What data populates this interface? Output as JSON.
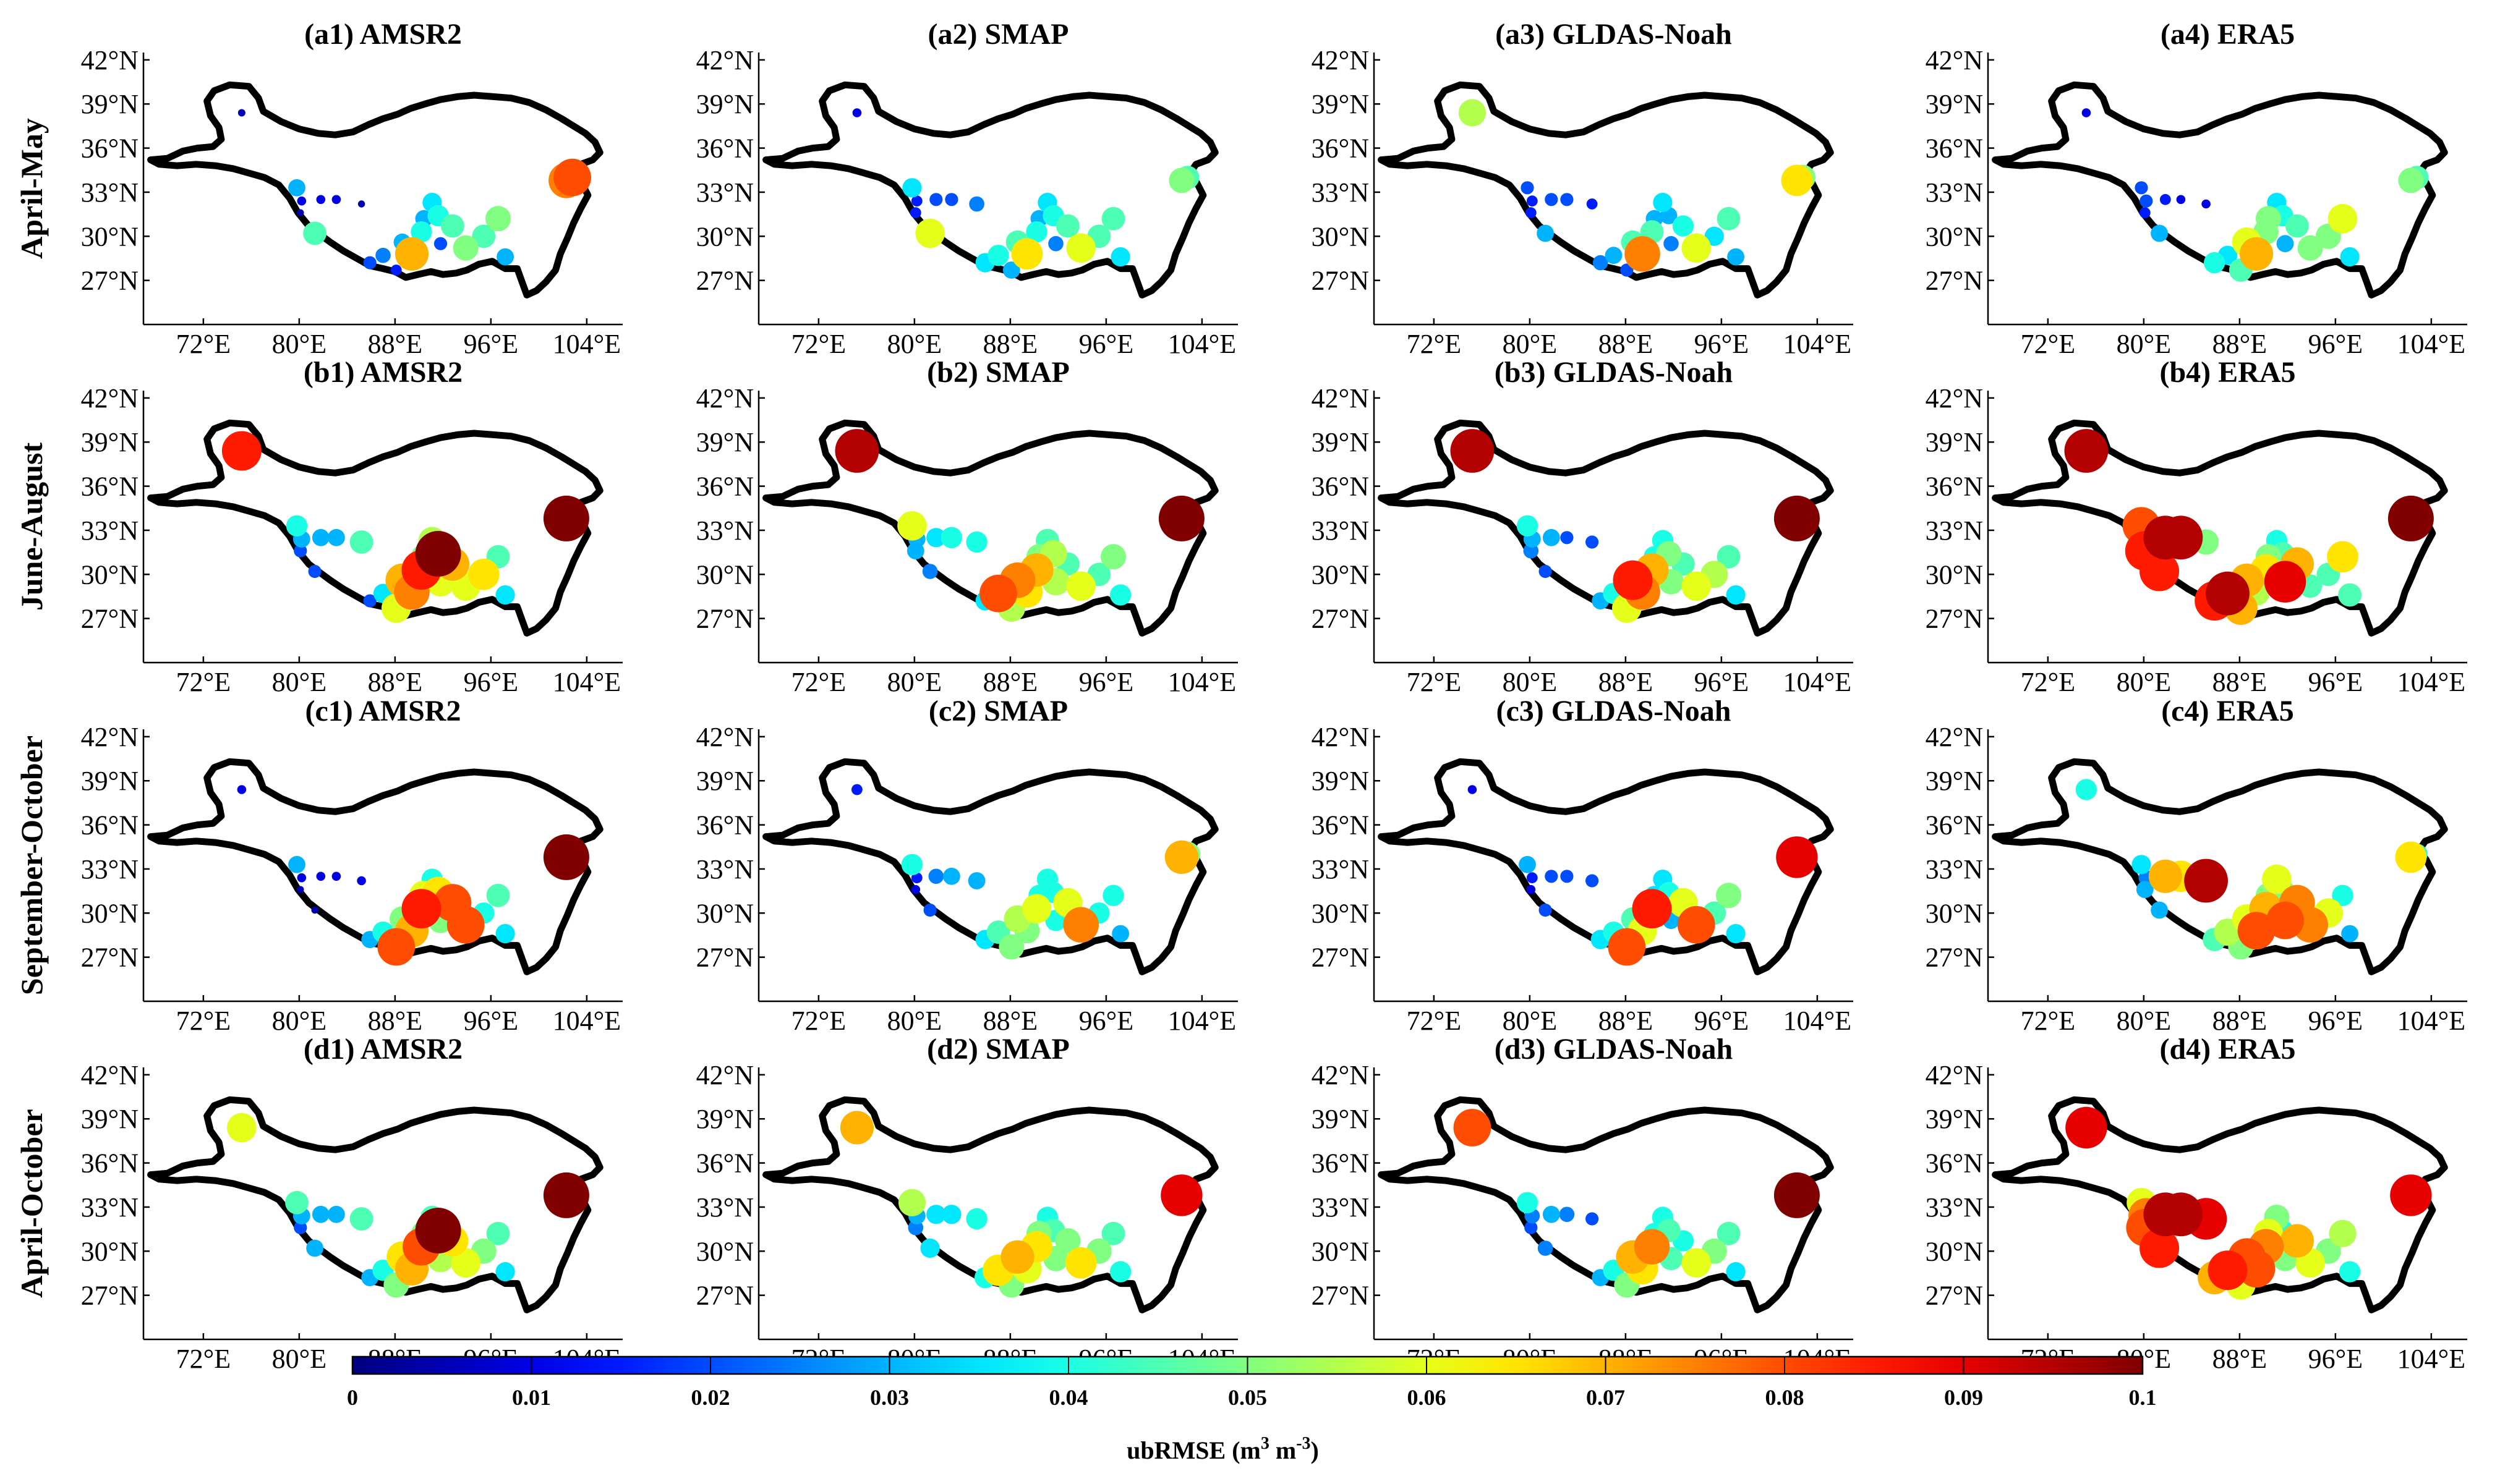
{
  "chart_data": {
    "type": "scatter",
    "figure_type": "map-scatter panel grid",
    "map_region": "Tibetan Plateau boundary",
    "axes": {
      "lon_ticks": [
        "72°E",
        "80°E",
        "88°E",
        "96°E",
        "104°E"
      ],
      "lon_values": [
        72,
        80,
        88,
        96,
        104
      ],
      "lat_ticks": [
        "42°N",
        "39°N",
        "36°N",
        "33°N",
        "30°N",
        "27°N"
      ],
      "lat_values": [
        42,
        39,
        36,
        33,
        30,
        27
      ],
      "xlim": [
        67,
        107
      ],
      "ylim": [
        24,
        42.5
      ]
    },
    "rows": [
      {
        "label": "April-May",
        "panels": [
          "(a1) AMSR2",
          "(a2) SMAP",
          "(a3) GLDAS-Noah",
          "(a4) ERA5"
        ]
      },
      {
        "label": "June-August",
        "panels": [
          "(b1) AMSR2",
          "(b2) SMAP",
          "(b3) GLDAS-Noah",
          "(b4) ERA5"
        ]
      },
      {
        "label": "September-October",
        "panels": [
          "(c1) AMSR2",
          "(c2) SMAP",
          "(c3) GLDAS-Noah",
          "(c4) ERA5"
        ]
      },
      {
        "label": "April-October",
        "panels": [
          "(d1) AMSR2",
          "(d2) SMAP",
          "(d3) GLDAS-Noah",
          "(d4) ERA5"
        ]
      }
    ],
    "sites": [
      {
        "lon": 75.2,
        "lat": 38.4
      },
      {
        "lon": 79.8,
        "lat": 33.3
      },
      {
        "lon": 80.2,
        "lat": 32.4
      },
      {
        "lon": 80.1,
        "lat": 31.6
      },
      {
        "lon": 81.3,
        "lat": 30.2
      },
      {
        "lon": 81.8,
        "lat": 32.5
      },
      {
        "lon": 83.1,
        "lat": 32.5
      },
      {
        "lon": 85.2,
        "lat": 32.2
      },
      {
        "lon": 85.9,
        "lat": 28.2
      },
      {
        "lon": 87.0,
        "lat": 28.7
      },
      {
        "lon": 88.1,
        "lat": 27.7
      },
      {
        "lon": 88.6,
        "lat": 29.6
      },
      {
        "lon": 89.4,
        "lat": 28.8
      },
      {
        "lon": 90.2,
        "lat": 30.3
      },
      {
        "lon": 90.4,
        "lat": 31.2
      },
      {
        "lon": 91.1,
        "lat": 32.3
      },
      {
        "lon": 91.6,
        "lat": 31.4
      },
      {
        "lon": 91.8,
        "lat": 29.5
      },
      {
        "lon": 92.8,
        "lat": 30.7
      },
      {
        "lon": 93.9,
        "lat": 29.2
      },
      {
        "lon": 95.4,
        "lat": 30.0
      },
      {
        "lon": 96.6,
        "lat": 31.2
      },
      {
        "lon": 97.2,
        "lat": 28.6
      },
      {
        "lon": 102.3,
        "lat": 33.8
      },
      {
        "lon": 102.8,
        "lat": 34.0
      }
    ],
    "values": {
      "a1": [
        0.006,
        0.03,
        0.01,
        0.005,
        0.045,
        0.01,
        0.01,
        0.005,
        0.02,
        0.025,
        0.015,
        0.03,
        0.07,
        0.04,
        0.03,
        0.035,
        0.04,
        0.02,
        0.045,
        0.05,
        0.045,
        0.05,
        0.03,
        0.075,
        0.08
      ],
      "a2": [
        0.01,
        0.035,
        0.015,
        0.015,
        0.06,
        0.02,
        0.02,
        0.025,
        0.035,
        0.04,
        0.03,
        0.045,
        0.065,
        0.04,
        0.03,
        0.035,
        0.04,
        0.025,
        0.045,
        0.06,
        0.045,
        0.045,
        0.035,
        0.05,
        0.045
      ],
      "a3": [
        0.055,
        0.02,
        0.015,
        0.015,
        0.03,
        0.02,
        0.02,
        0.015,
        0.025,
        0.03,
        0.02,
        0.045,
        0.075,
        0.045,
        0.03,
        0.035,
        0.03,
        0.025,
        0.04,
        0.06,
        0.035,
        0.045,
        0.03,
        0.065,
        0.05
      ],
      "a4": [
        0.01,
        0.02,
        0.02,
        0.015,
        0.03,
        0.015,
        0.01,
        0.01,
        0.04,
        0.035,
        0.045,
        0.06,
        0.07,
        0.05,
        0.05,
        0.035,
        0.04,
        0.03,
        0.045,
        0.05,
        0.05,
        0.06,
        0.035,
        0.05,
        0.045
      ],
      "b1": [
        0.085,
        0.04,
        0.03,
        0.02,
        0.02,
        0.03,
        0.03,
        0.045,
        0.02,
        0.035,
        0.06,
        0.07,
        0.075,
        0.085,
        0.05,
        0.055,
        0.1,
        0.06,
        0.07,
        0.06,
        0.065,
        0.045,
        0.035,
        0.1,
        0.04
      ],
      "b2": [
        0.095,
        0.06,
        0.03,
        0.03,
        0.025,
        0.035,
        0.04,
        0.04,
        0.035,
        0.08,
        0.055,
        0.075,
        0.065,
        0.07,
        0.05,
        0.045,
        0.055,
        0.055,
        0.045,
        0.06,
        0.045,
        0.05,
        0.04,
        0.1,
        0.05
      ],
      "b3": [
        0.095,
        0.04,
        0.03,
        0.025,
        0.02,
        0.03,
        0.02,
        0.02,
        0.03,
        0.04,
        0.06,
        0.085,
        0.075,
        0.07,
        0.04,
        0.04,
        0.05,
        0.05,
        0.045,
        0.06,
        0.055,
        0.045,
        0.035,
        0.1,
        0.06
      ],
      "b4": [
        0.095,
        0.08,
        0.065,
        0.085,
        0.085,
        0.095,
        0.095,
        0.05,
        0.085,
        0.095,
        0.07,
        0.07,
        0.055,
        0.065,
        0.05,
        0.04,
        0.045,
        0.09,
        0.07,
        0.045,
        0.045,
        0.065,
        0.045,
        0.1,
        0.04
      ],
      "c1": [
        0.01,
        0.03,
        0.01,
        0.005,
        0.005,
        0.01,
        0.01,
        0.01,
        0.03,
        0.04,
        0.08,
        0.05,
        0.07,
        0.085,
        0.06,
        0.04,
        0.065,
        0.05,
        0.08,
        0.08,
        0.04,
        0.045,
        0.035,
        0.1,
        0.05
      ],
      "c2": [
        0.015,
        0.04,
        0.015,
        0.01,
        0.02,
        0.025,
        0.03,
        0.03,
        0.035,
        0.045,
        0.05,
        0.055,
        0.05,
        0.06,
        0.04,
        0.04,
        0.04,
        0.04,
        0.06,
        0.075,
        0.04,
        0.04,
        0.03,
        0.07,
        0.05
      ],
      "c3": [
        0.01,
        0.03,
        0.015,
        0.01,
        0.02,
        0.02,
        0.02,
        0.02,
        0.035,
        0.04,
        0.08,
        0.045,
        0.06,
        0.085,
        0.035,
        0.035,
        0.04,
        0.03,
        0.06,
        0.08,
        0.045,
        0.05,
        0.035,
        0.09,
        0.05
      ],
      "c4": [
        0.04,
        0.035,
        0.025,
        0.03,
        0.03,
        0.07,
        0.065,
        0.095,
        0.045,
        0.055,
        0.05,
        0.06,
        0.08,
        0.07,
        0.05,
        0.06,
        0.05,
        0.08,
        0.075,
        0.075,
        0.06,
        0.04,
        0.03,
        0.065,
        0.04
      ],
      "d1": [
        0.06,
        0.045,
        0.03,
        0.02,
        0.03,
        0.03,
        0.03,
        0.045,
        0.03,
        0.04,
        0.05,
        0.065,
        0.07,
        0.08,
        0.05,
        0.045,
        0.1,
        0.055,
        0.065,
        0.06,
        0.05,
        0.045,
        0.035,
        0.1,
        0.05
      ],
      "d2": [
        0.07,
        0.055,
        0.03,
        0.025,
        0.035,
        0.035,
        0.035,
        0.04,
        0.04,
        0.065,
        0.05,
        0.07,
        0.06,
        0.065,
        0.05,
        0.04,
        0.045,
        0.05,
        0.05,
        0.065,
        0.05,
        0.045,
        0.04,
        0.09,
        0.045
      ],
      "d3": [
        0.08,
        0.04,
        0.025,
        0.02,
        0.025,
        0.03,
        0.025,
        0.02,
        0.03,
        0.04,
        0.05,
        0.07,
        0.065,
        0.075,
        0.04,
        0.04,
        0.045,
        0.045,
        0.04,
        0.06,
        0.05,
        0.045,
        0.035,
        0.1,
        0.06
      ],
      "d4": [
        0.09,
        0.06,
        0.075,
        0.08,
        0.085,
        0.095,
        0.095,
        0.09,
        0.07,
        0.085,
        0.06,
        0.08,
        0.08,
        0.075,
        0.06,
        0.05,
        0.04,
        0.05,
        0.07,
        0.06,
        0.05,
        0.055,
        0.04,
        0.09,
        0.04
      ]
    },
    "colorbar": {
      "colormap": "jet",
      "range": [
        0,
        0.1
      ],
      "ticks": [
        "0",
        "0.01",
        "0.02",
        "0.03",
        "0.04",
        "0.05",
        "0.06",
        "0.07",
        "0.08",
        "0.09",
        "0.1"
      ],
      "label_prefix": "ubRMSE (m",
      "label_sup1": "3",
      "label_mid": " m",
      "label_sup2": "-3",
      "label_suffix": ")"
    }
  }
}
